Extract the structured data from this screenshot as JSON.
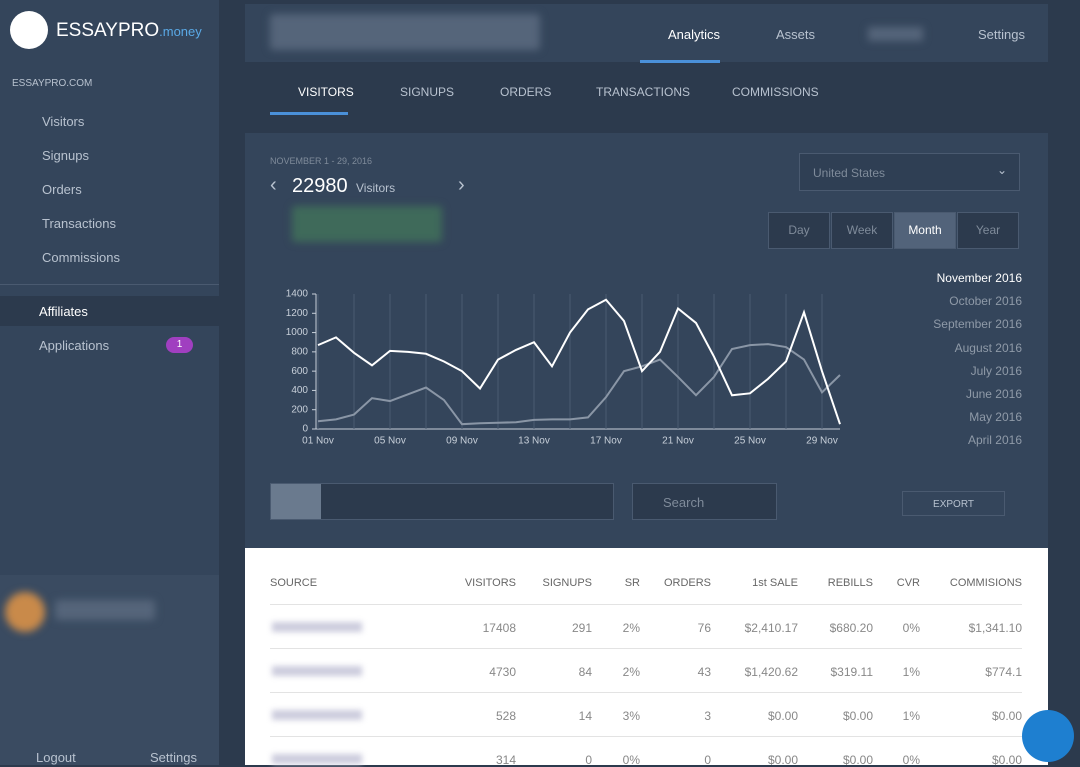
{
  "brand": {
    "name": "ESSAYPRO",
    "suffix": ".money"
  },
  "sidebar": {
    "site": "ESSAYPRO.COM",
    "items": [
      "Visitors",
      "Signups",
      "Orders",
      "Transactions",
      "Commissions"
    ],
    "affiliates": "Affiliates",
    "applications": "Applications",
    "badge": "1",
    "logout": "Logout",
    "settings": "Settings"
  },
  "topnav": [
    "Analytics",
    "Assets",
    "Settings"
  ],
  "tabs": [
    "VISITORS",
    "SIGNUPS",
    "ORDERS",
    "TRANSACTIONS",
    "COMMISSIONS"
  ],
  "summary": {
    "range": "NOVEMBER 1 - 29, 2016",
    "count": "22980",
    "unit": "Visitors"
  },
  "country": "United States",
  "periods": [
    "Day",
    "Week",
    "Month",
    "Year"
  ],
  "months": [
    "November 2016",
    "October 2016",
    "September 2016",
    "August 2016",
    "July 2016",
    "June 2016",
    "May 2016",
    "April 2016"
  ],
  "search": "Search",
  "export": "EXPORT",
  "chart": {
    "type": "line",
    "categories": [
      "01 Nov",
      null,
      null,
      null,
      "05 Nov",
      null,
      null,
      null,
      "09 Nov",
      null,
      null,
      null,
      "13 Nov",
      null,
      null,
      null,
      "17 Nov",
      null,
      null,
      null,
      "21 Nov",
      null,
      null,
      null,
      "25 Nov",
      null,
      null,
      null,
      "29 Nov",
      null
    ],
    "series": [
      {
        "color": "#ffffff",
        "values": [
          870,
          950,
          790,
          660,
          810,
          800,
          780,
          700,
          600,
          420,
          720,
          820,
          900,
          650,
          1000,
          1240,
          1340,
          1120,
          600,
          800,
          1250,
          1100,
          750,
          350,
          370,
          520,
          700,
          1210,
          600,
          50
        ]
      },
      {
        "color": "#8a96a6",
        "values": [
          80,
          100,
          150,
          320,
          290,
          360,
          430,
          300,
          50,
          60,
          65,
          70,
          95,
          100,
          100,
          120,
          330,
          600,
          650,
          720,
          540,
          350,
          540,
          830,
          870,
          880,
          850,
          720,
          380,
          560
        ]
      }
    ],
    "ylim": [
      0,
      1400
    ],
    "yticks": [
      0,
      200,
      400,
      600,
      800,
      1000,
      1200,
      1400
    ]
  },
  "table": {
    "headers": [
      "SOURCE",
      "VISITORS",
      "SIGNUPS",
      "SR",
      "ORDERS",
      "1st SALE",
      "REBILLS",
      "CVR",
      "COMMISIONS"
    ],
    "rows": [
      [
        "17408",
        "291",
        "2%",
        "76",
        "$2,410.17",
        "$680.20",
        "0%",
        "$1,341.10"
      ],
      [
        "4730",
        "84",
        "2%",
        "43",
        "$1,420.62",
        "$319.11",
        "1%",
        "$774.1"
      ],
      [
        "528",
        "14",
        "3%",
        "3",
        "$0.00",
        "$0.00",
        "1%",
        "$0.00"
      ],
      [
        "314",
        "0",
        "0%",
        "0",
        "$0.00",
        "$0.00",
        "0%",
        "$0.00"
      ]
    ]
  }
}
